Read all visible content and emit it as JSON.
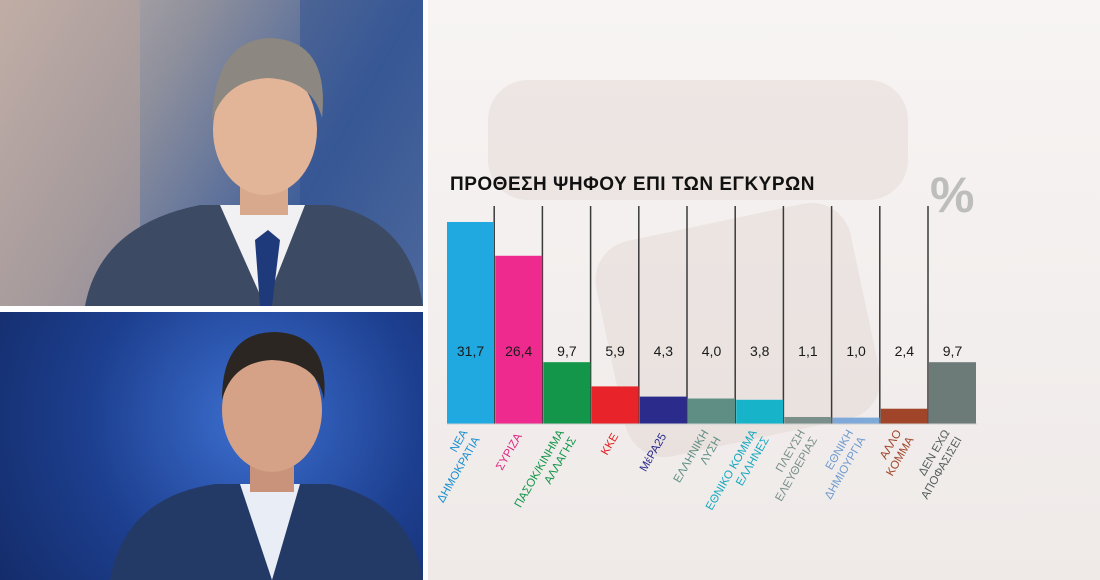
{
  "photos": [
    {
      "subject": "man-in-suit-gray-hair",
      "bg_color": "#4a5f96"
    },
    {
      "subject": "man-in-suit-dark-hair",
      "bg_color": "#1d3f8f"
    }
  ],
  "chart_data": {
    "type": "bar",
    "title": "ΠΡΟΘΕΣΗ ΨΗΦΟΥ ΕΠΙ ΤΩΝ ΕΓΚΥΡΩΝ",
    "unit_symbol": "%",
    "ylim": [
      0,
      33
    ],
    "grid": "vertical-separators",
    "categories": [
      [
        "ΝΕΑ",
        "ΔΗΜΟΚΡΑΤΙΑ"
      ],
      [
        "ΣΥΡΙΖΑ"
      ],
      [
        "ΠΑΣΟΚ/ΚΙΝΗΜΑ",
        "ΑΛΛΑΓΗΣ"
      ],
      [
        "ΚΚΕ"
      ],
      [
        "ΜέΡΑ25"
      ],
      [
        "ΕΛΛΗΝΙΚΗ",
        "ΛΥΣΗ"
      ],
      [
        "ΕΘΝΙΚΟ ΚΟΜΜΑ",
        "ΕΛΛΗΝΕΣ"
      ],
      [
        "ΠΛΕΥΣΗ",
        "ΕΛΕΥΘΕΡΙΑΣ"
      ],
      [
        "ΕΘΝΙΚΗ",
        "ΔΗΜΙΟΥΡΓΙΑ"
      ],
      [
        "ΑΛΛΟ",
        "ΚΟΜΜΑ"
      ],
      [
        "ΔΕΝ ΕΧΩ",
        "ΑΠΟΦΑΣΙΣΕΙ"
      ]
    ],
    "values": [
      31.7,
      26.4,
      9.7,
      5.9,
      4.3,
      4.0,
      3.8,
      1.1,
      1.0,
      2.4,
      9.7
    ],
    "value_labels": [
      "31,7",
      "26,4",
      "9,7",
      "5,9",
      "4,3",
      "4,0",
      "3,8",
      "1,1",
      "1,0",
      "2,4",
      "9,7"
    ],
    "colors": [
      "#1fa9e0",
      "#ee2a8e",
      "#13964a",
      "#e8232a",
      "#2b2b8c",
      "#5f8f84",
      "#16b3c9",
      "#7a8f8a",
      "#7fa9d8",
      "#a0452a",
      "#6d7b78"
    ],
    "label_colors": [
      "#1a8fd0",
      "#e0267f",
      "#13964a",
      "#e02020",
      "#2b2b8c",
      "#5f8f84",
      "#16a8bf",
      "#7a8f8a",
      "#6f9ad0",
      "#a0452a",
      "#555f5d"
    ]
  }
}
